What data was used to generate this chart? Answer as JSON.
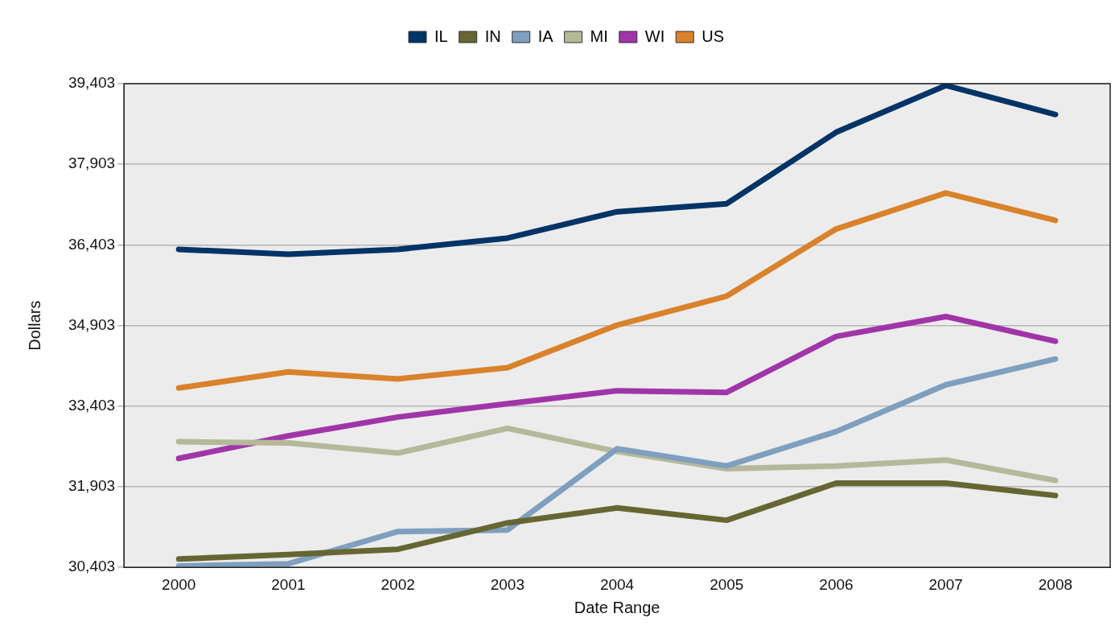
{
  "chart_data": {
    "type": "line",
    "xlabel": "Date Range",
    "ylabel": "Dollars",
    "categories": [
      "2000",
      "2001",
      "2002",
      "2003",
      "2004",
      "2005",
      "2006",
      "2007",
      "2008"
    ],
    "series": [
      {
        "name": "IL",
        "color": "#003366",
        "values": [
          36320,
          36230,
          36320,
          36530,
          37020,
          37170,
          38500,
          39370,
          38830
        ]
      },
      {
        "name": "IN",
        "color": "#666633",
        "values": [
          30560,
          30640,
          30740,
          31230,
          31510,
          31280,
          31970,
          31970,
          31740
        ]
      },
      {
        "name": "IA",
        "color": "#7f9fbf",
        "values": [
          30430,
          30470,
          31070,
          31100,
          32610,
          32290,
          32930,
          33800,
          34280
        ]
      },
      {
        "name": "MI",
        "color": "#b5b89a",
        "values": [
          32740,
          32720,
          32530,
          32990,
          32560,
          32240,
          32290,
          32400,
          32020
        ]
      },
      {
        "name": "WI",
        "color": "#a035a8",
        "values": [
          32430,
          32850,
          33200,
          33450,
          33690,
          33660,
          34700,
          35070,
          34610
        ]
      },
      {
        "name": "US",
        "color": "#d9822b",
        "values": [
          33740,
          34040,
          33910,
          34120,
          34910,
          35450,
          36700,
          37370,
          36860
        ]
      }
    ],
    "ylim": [
      30403,
      39403
    ],
    "yticks": [
      {
        "value": 30403,
        "label": "30,403"
      },
      {
        "value": 31903,
        "label": "31,903"
      },
      {
        "value": 33403,
        "label": "33,403"
      },
      {
        "value": 34903,
        "label": "34,903"
      },
      {
        "value": 36403,
        "label": "36,403"
      },
      {
        "value": 37903,
        "label": "37,903"
      },
      {
        "value": 39403,
        "label": "39,403"
      }
    ],
    "grid": "y",
    "legend": "top",
    "marker": "none",
    "line_style": "solid"
  }
}
